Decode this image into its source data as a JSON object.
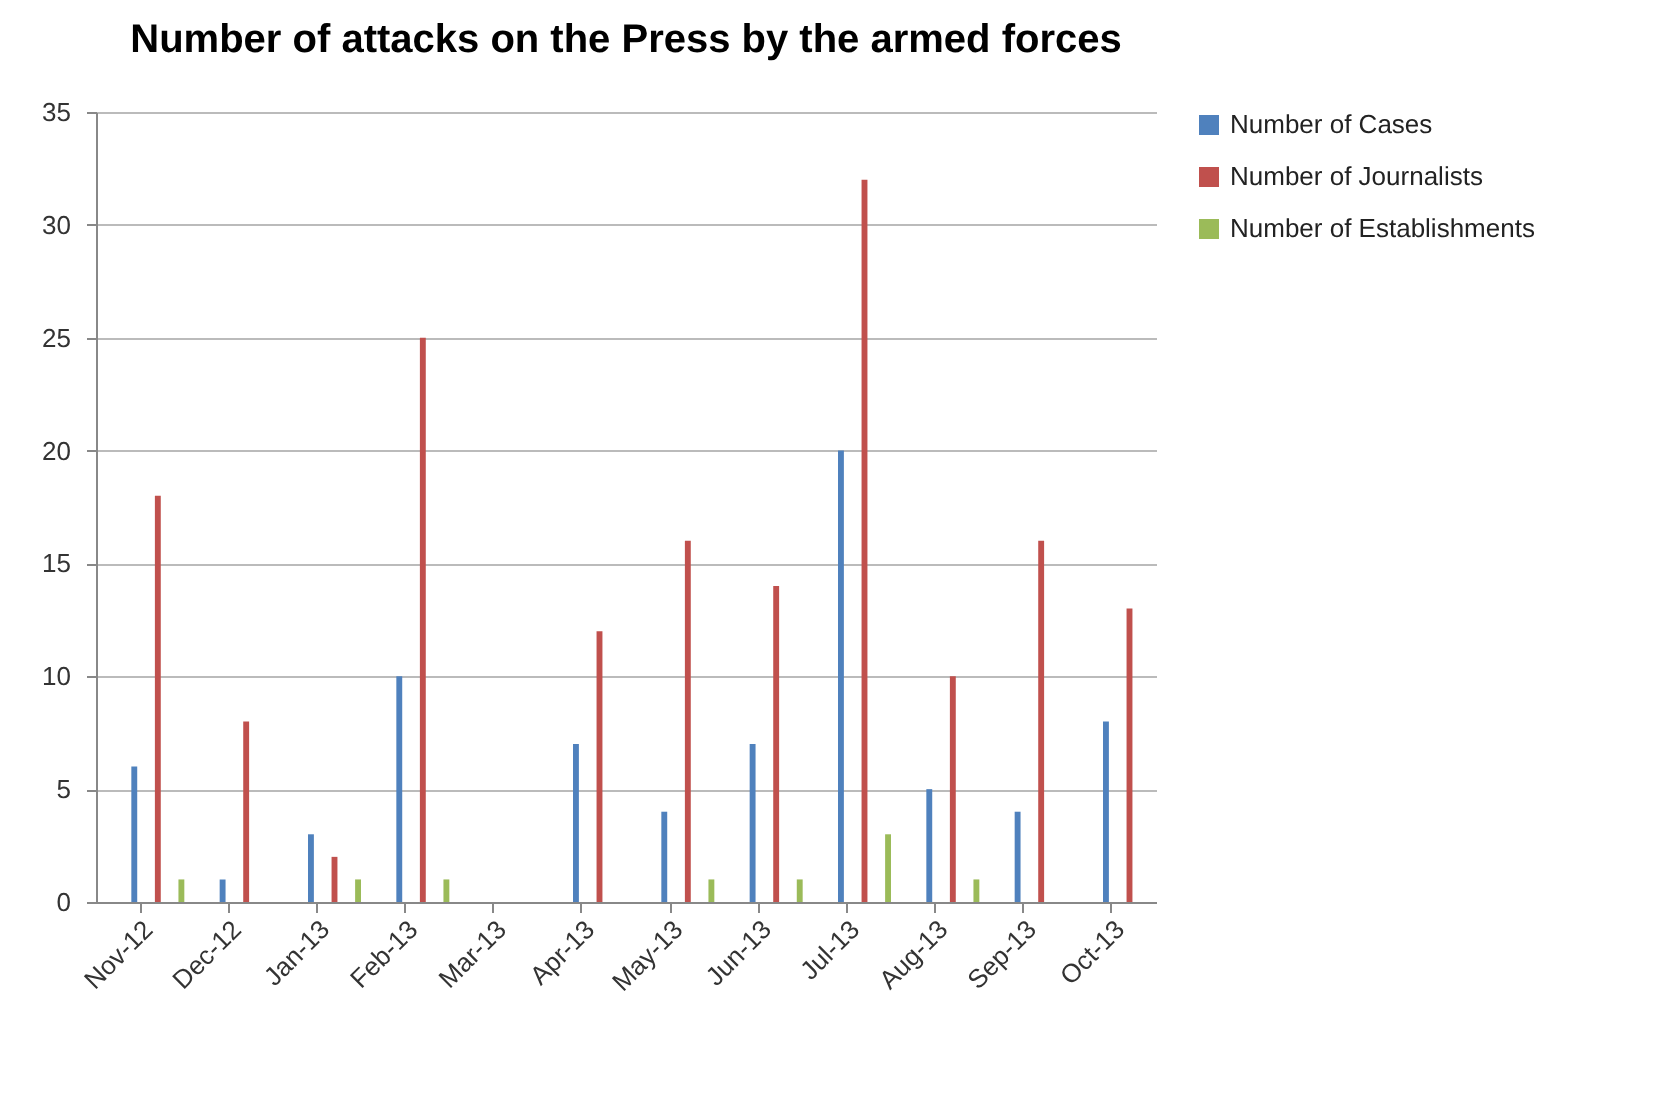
{
  "chart_data": {
    "type": "bar",
    "title": "Number of attacks on the Press by the armed forces",
    "categories": [
      "Nov-12",
      "Dec-12",
      "Jan-13",
      "Feb-13",
      "Mar-13",
      "Apr-13",
      "May-13",
      "Jun-13",
      "Jul-13",
      "Aug-13",
      "Sep-13",
      "Oct-13"
    ],
    "series": [
      {
        "name": "Number of Cases",
        "color": "#4f81bd",
        "values": [
          6,
          1,
          3,
          10,
          0,
          7,
          4,
          7,
          20,
          5,
          4,
          8
        ]
      },
      {
        "name": "Number of Journalists",
        "color": "#c0504d",
        "values": [
          18,
          8,
          2,
          25,
          0,
          12,
          16,
          14,
          32,
          10,
          16,
          13
        ]
      },
      {
        "name": "Number of Establishments",
        "color": "#9bbb59",
        "values": [
          1,
          0,
          1,
          1,
          0,
          0,
          1,
          1,
          3,
          1,
          0,
          0
        ]
      }
    ],
    "ylim": [
      0,
      35
    ],
    "yticks": [
      0,
      5,
      10,
      15,
      20,
      25,
      30,
      35
    ],
    "grid": "y",
    "legend": "right"
  }
}
